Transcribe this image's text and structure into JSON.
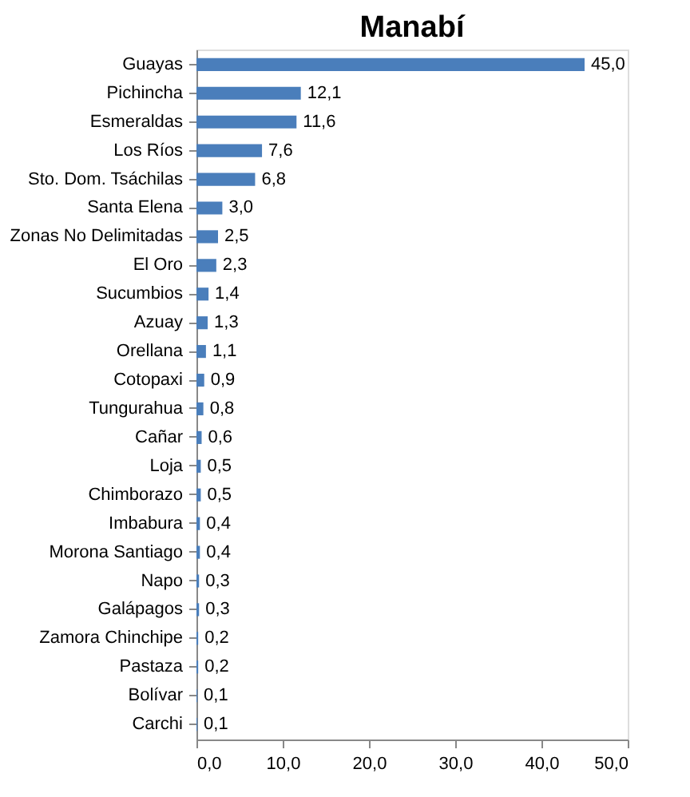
{
  "chart_data": {
    "type": "bar",
    "orientation": "horizontal",
    "title": "Manabí",
    "categories": [
      "Guayas",
      "Pichincha",
      "Esmeraldas",
      "Los Ríos",
      "Sto. Dom. Tsáchilas",
      "Santa Elena",
      "Zonas No Delimitadas",
      "El Oro",
      "Sucumbios",
      "Azuay",
      "Orellana",
      "Cotopaxi",
      "Tungurahua",
      "Cañar",
      "Loja",
      "Chimborazo",
      "Imbabura",
      "Morona Santiago",
      "Napo",
      "Galápagos",
      "Zamora Chinchipe",
      "Pastaza",
      "Bolívar",
      "Carchi"
    ],
    "values": [
      45.0,
      12.1,
      11.6,
      7.6,
      6.8,
      3.0,
      2.5,
      2.3,
      1.4,
      1.3,
      1.1,
      0.9,
      0.8,
      0.6,
      0.5,
      0.5,
      0.4,
      0.4,
      0.3,
      0.3,
      0.2,
      0.2,
      0.1,
      0.1
    ],
    "value_labels": [
      "45,0",
      "12,1",
      "11,6",
      "7,6",
      "6,8",
      "3,0",
      "2,5",
      "2,3",
      "1,4",
      "1,3",
      "1,1",
      "0,9",
      "0,8",
      "0,6",
      "0,5",
      "0,5",
      "0,4",
      "0,4",
      "0,3",
      "0,3",
      "0,2",
      "0,2",
      "0,1",
      "0,1"
    ],
    "color": "#4a7ebb",
    "xlim": [
      0,
      50
    ],
    "xticks": [
      {
        "value": 0,
        "label": "0,0"
      },
      {
        "value": 10,
        "label": "10,0"
      },
      {
        "value": 20,
        "label": "20,0"
      },
      {
        "value": 30,
        "label": "30,0"
      },
      {
        "value": 40,
        "label": "40,0"
      },
      {
        "value": 50,
        "label": "50,0"
      }
    ],
    "grid": false
  }
}
